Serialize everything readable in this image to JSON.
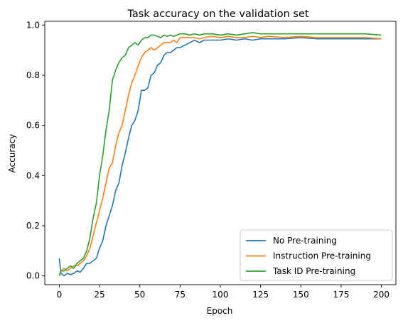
{
  "chart_data": {
    "type": "line",
    "title": "Task accuracy on the validation set",
    "xlabel": "Epoch",
    "ylabel": "Accuracy",
    "xlim": [
      -9,
      209
    ],
    "ylim": [
      -0.035,
      1.015
    ],
    "xticks": [
      0,
      25,
      50,
      75,
      100,
      125,
      150,
      175,
      200
    ],
    "yticks": [
      0.0,
      0.2,
      0.4,
      0.6,
      0.8,
      1.0
    ],
    "ytick_labels": [
      "0.0",
      "0.2",
      "0.4",
      "0.6",
      "0.8",
      "1.0"
    ],
    "grid": false,
    "legend_position": "lower-right",
    "series": [
      {
        "name": "No Pre-training",
        "color": "#1f77b4",
        "x": [
          0,
          1,
          3,
          5,
          7,
          9,
          11,
          13,
          15,
          17,
          19,
          21,
          23,
          25,
          27,
          29,
          31,
          33,
          35,
          37,
          39,
          41,
          43,
          45,
          47,
          49,
          51,
          53,
          55,
          57,
          59,
          61,
          63,
          65,
          67,
          69,
          71,
          73,
          75,
          78,
          81,
          84,
          87,
          90,
          95,
          100,
          105,
          110,
          115,
          120,
          125,
          130,
          140,
          150,
          160,
          170,
          180,
          190,
          200
        ],
        "y": [
          0.07,
          0.01,
          0.0,
          0.01,
          0.005,
          0.01,
          0.02,
          0.015,
          0.03,
          0.05,
          0.05,
          0.06,
          0.07,
          0.11,
          0.14,
          0.2,
          0.24,
          0.28,
          0.34,
          0.37,
          0.44,
          0.49,
          0.55,
          0.6,
          0.62,
          0.66,
          0.74,
          0.74,
          0.75,
          0.8,
          0.81,
          0.84,
          0.85,
          0.88,
          0.89,
          0.89,
          0.9,
          0.91,
          0.91,
          0.92,
          0.93,
          0.94,
          0.93,
          0.94,
          0.94,
          0.94,
          0.945,
          0.94,
          0.945,
          0.94,
          0.945,
          0.945,
          0.945,
          0.95,
          0.945,
          0.945,
          0.945,
          0.945,
          0.945
        ]
      },
      {
        "name": "Instruction Pre-training",
        "color": "#ff7f0e",
        "x": [
          0,
          1,
          3,
          5,
          7,
          9,
          11,
          13,
          15,
          17,
          19,
          21,
          23,
          25,
          27,
          29,
          31,
          33,
          35,
          37,
          39,
          41,
          43,
          45,
          47,
          49,
          51,
          53,
          55,
          57,
          59,
          61,
          63,
          65,
          67,
          69,
          71,
          73,
          75,
          78,
          81,
          84,
          87,
          90,
          95,
          100,
          105,
          110,
          115,
          120,
          125,
          130,
          140,
          150,
          160,
          170,
          180,
          190,
          200
        ],
        "y": [
          0.0,
          0.02,
          0.03,
          0.02,
          0.03,
          0.04,
          0.04,
          0.05,
          0.06,
          0.08,
          0.11,
          0.16,
          0.21,
          0.26,
          0.31,
          0.37,
          0.43,
          0.45,
          0.52,
          0.57,
          0.6,
          0.66,
          0.72,
          0.77,
          0.8,
          0.84,
          0.87,
          0.89,
          0.9,
          0.91,
          0.9,
          0.91,
          0.92,
          0.93,
          0.93,
          0.93,
          0.94,
          0.93,
          0.95,
          0.95,
          0.95,
          0.95,
          0.945,
          0.95,
          0.955,
          0.95,
          0.955,
          0.95,
          0.95,
          0.955,
          0.95,
          0.955,
          0.95,
          0.955,
          0.95,
          0.95,
          0.95,
          0.95,
          0.945
        ]
      },
      {
        "name": "Task ID Pre-training",
        "color": "#2ca02c",
        "x": [
          0,
          1,
          3,
          5,
          7,
          9,
          11,
          13,
          15,
          17,
          19,
          21,
          23,
          25,
          27,
          29,
          31,
          33,
          35,
          37,
          39,
          41,
          43,
          45,
          47,
          49,
          51,
          53,
          55,
          57,
          59,
          61,
          63,
          65,
          67,
          69,
          71,
          73,
          75,
          78,
          81,
          84,
          87,
          90,
          95,
          100,
          105,
          110,
          115,
          120,
          125,
          130,
          140,
          150,
          160,
          170,
          180,
          190,
          200
        ],
        "y": [
          0.0,
          0.02,
          0.02,
          0.03,
          0.04,
          0.03,
          0.05,
          0.06,
          0.07,
          0.1,
          0.15,
          0.23,
          0.29,
          0.4,
          0.48,
          0.58,
          0.66,
          0.78,
          0.82,
          0.85,
          0.87,
          0.88,
          0.91,
          0.92,
          0.93,
          0.92,
          0.94,
          0.95,
          0.95,
          0.96,
          0.96,
          0.955,
          0.95,
          0.96,
          0.955,
          0.96,
          0.955,
          0.96,
          0.965,
          0.965,
          0.96,
          0.965,
          0.96,
          0.965,
          0.965,
          0.96,
          0.965,
          0.96,
          0.965,
          0.97,
          0.965,
          0.965,
          0.965,
          0.965,
          0.965,
          0.965,
          0.965,
          0.965,
          0.96
        ]
      }
    ]
  }
}
